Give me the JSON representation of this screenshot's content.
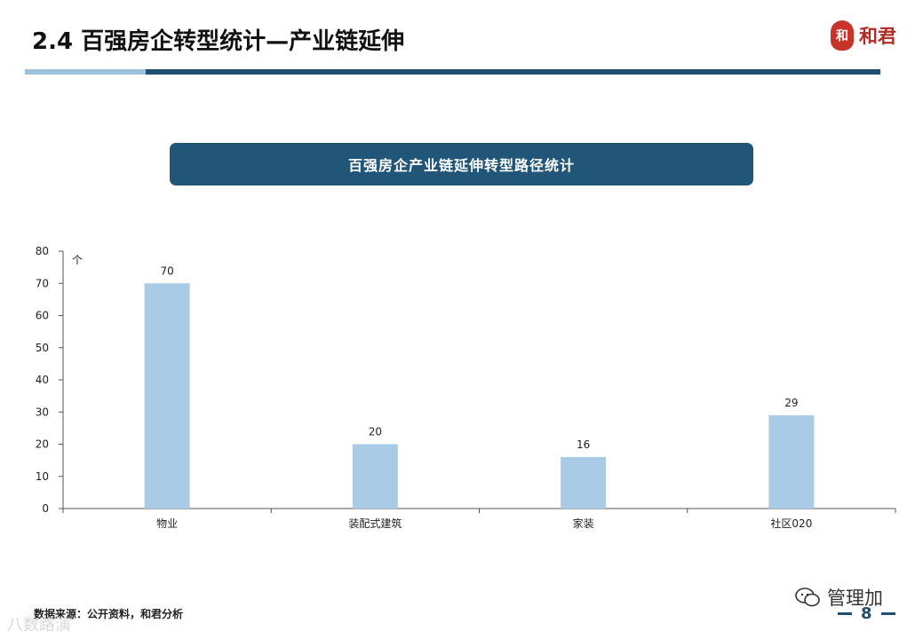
{
  "header": {
    "title": "2.4 百强房企转型统计—产业链延伸",
    "logo_seal": "和",
    "logo_text": "和君"
  },
  "banner": {
    "text": "百强房企产业链延伸转型路径统计"
  },
  "chart_data": {
    "type": "bar",
    "categories": [
      "物业",
      "装配式建筑",
      "家装",
      "社区020"
    ],
    "values": [
      70,
      20,
      16,
      29
    ],
    "ylabel": "个",
    "ylim": [
      0,
      80
    ],
    "yticks": [
      0,
      10,
      20,
      30,
      40,
      50,
      60,
      70,
      80
    ],
    "data_labels": true,
    "grid": false,
    "bar_color": "#a9cbe6"
  },
  "footer": {
    "source": "数据来源：公开资料，和君分析",
    "wechat": "管理加",
    "page_number": "8",
    "watermark": "八数路演"
  }
}
